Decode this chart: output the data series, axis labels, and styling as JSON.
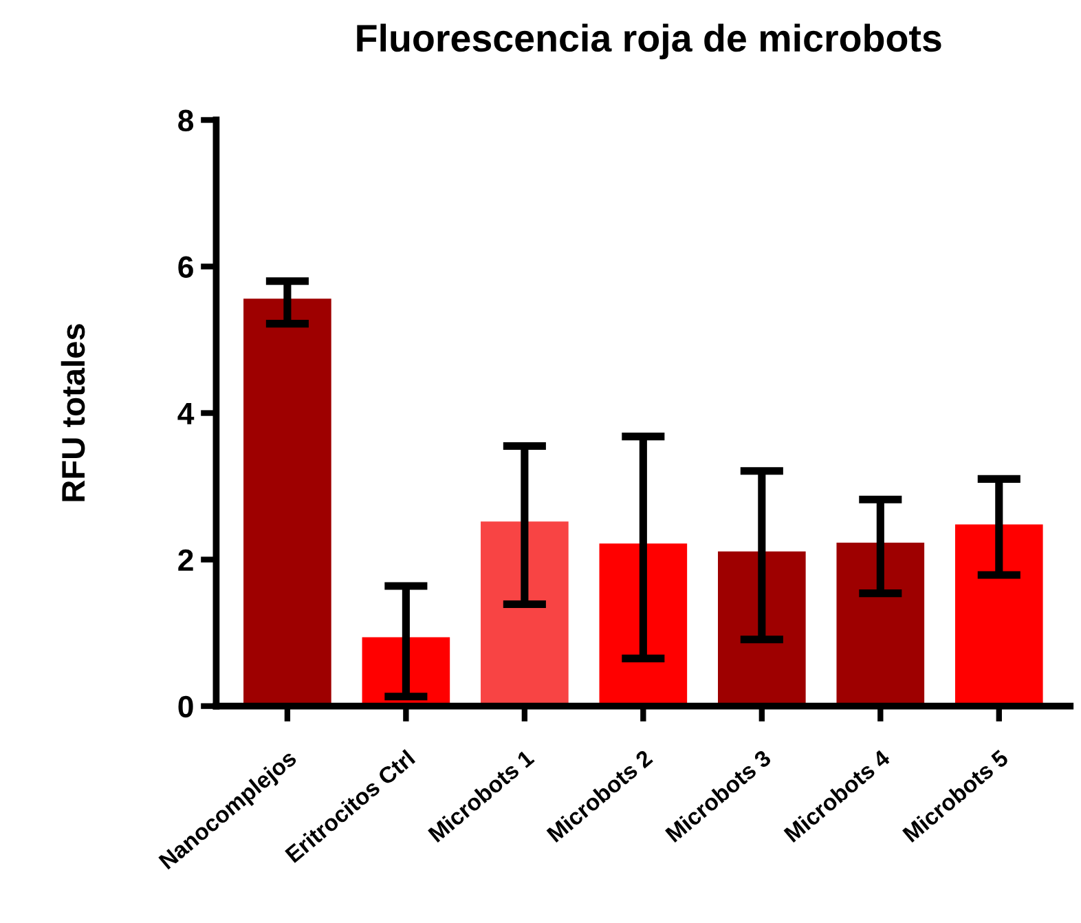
{
  "chart_data": {
    "type": "bar",
    "title": "Fluorescencia roja de microbots",
    "ylabel": "RFU totales",
    "categories": [
      "Nanocomplejos",
      "Eritrocitos Ctrl",
      "Microbots 1",
      "Microbots 2",
      "Microbots 3",
      "Microbots 4",
      "Microbots 5"
    ],
    "values": [
      5.56,
      0.94,
      2.52,
      2.22,
      2.11,
      2.23,
      2.48
    ],
    "colors": [
      "#9e0000",
      "#ff0000",
      "#f84444",
      "#ff0000",
      "#9e0000",
      "#9e0000",
      "#ff0000"
    ],
    "errors": [
      [
        5.22,
        5.8
      ],
      [
        0.13,
        1.64
      ],
      [
        1.39,
        3.55
      ],
      [
        0.65,
        3.68
      ],
      [
        0.91,
        3.21
      ],
      [
        1.54,
        2.82
      ],
      [
        1.79,
        3.1
      ]
    ],
    "ylim": [
      0,
      8
    ],
    "yticks": [
      0,
      2,
      4,
      6,
      8
    ],
    "grid": false,
    "legend": false
  }
}
